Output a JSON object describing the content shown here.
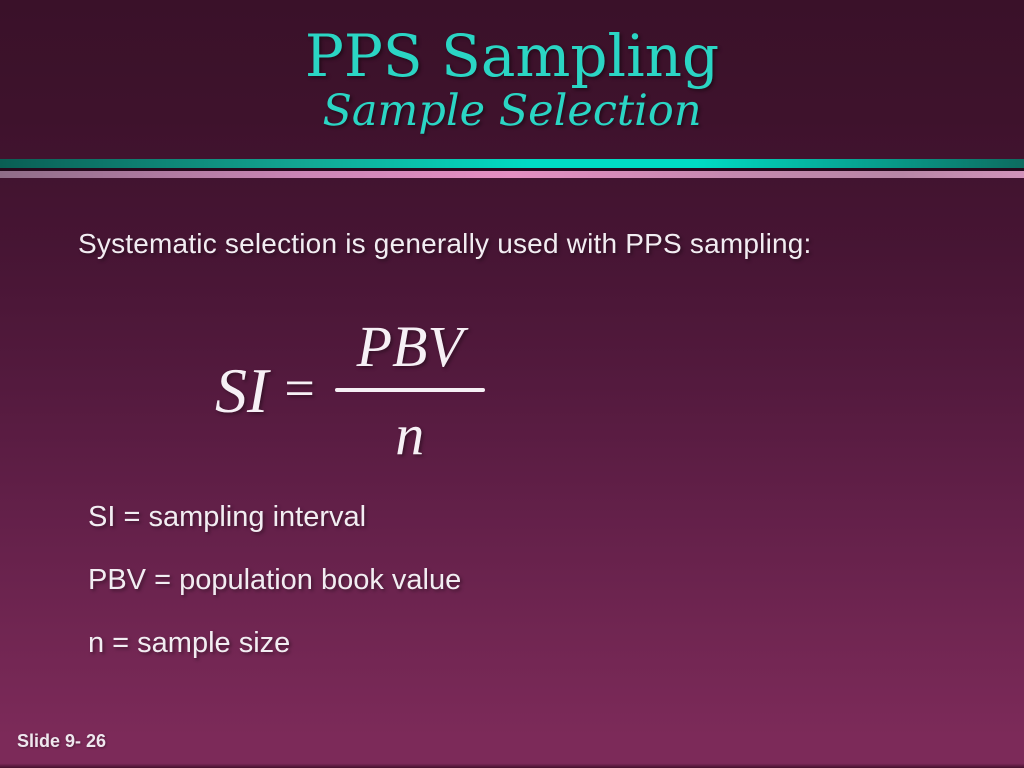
{
  "slide": {
    "title": "PPS Sampling",
    "subtitle": "Sample Selection",
    "intro": "Systematic selection is generally used with PPS sampling:",
    "formula": {
      "lhs": "SI",
      "equals": "=",
      "numerator": "PBV",
      "denominator": "n"
    },
    "definitions": [
      "SI = sampling interval",
      "PBV = population book value",
      "n = sample size"
    ],
    "footer": "Slide 9- 26",
    "colors": {
      "accent_teal_text": "#2bd5c4",
      "divider_teal_bright": "#00dcc4",
      "divider_teal_dark": "#0a5e54",
      "divider_pink": "#e48fc2",
      "body_text": "#f2edf2",
      "background_top": "#3a1129",
      "background_bottom": "#7c2a59"
    }
  }
}
